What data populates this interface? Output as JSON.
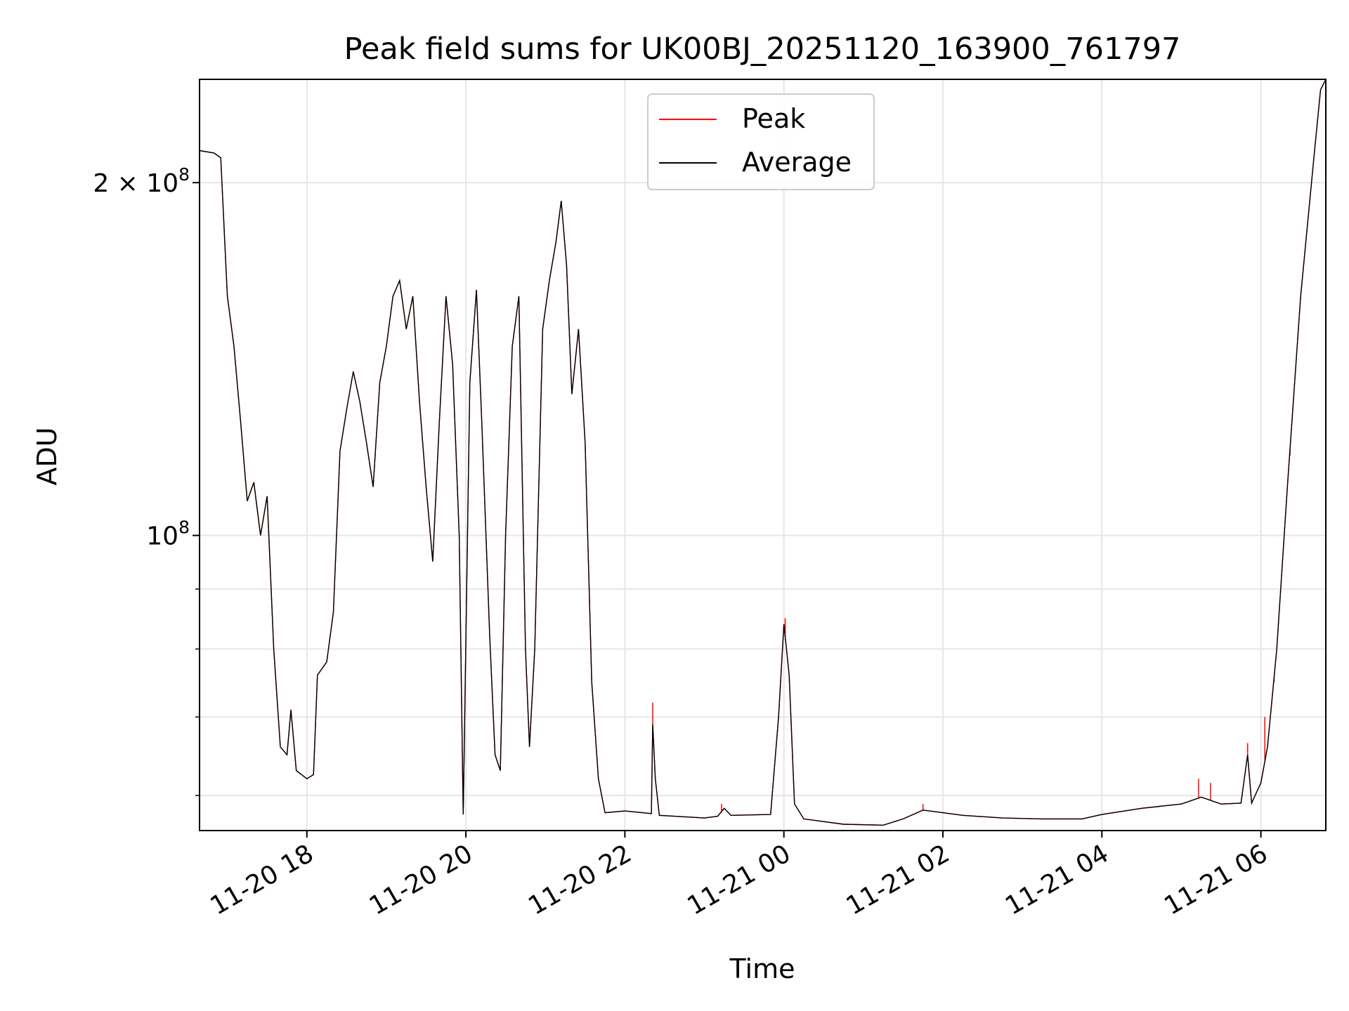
{
  "chart_data": {
    "type": "line",
    "title": "Peak field sums for UK00BJ_20251120_163900_761797",
    "xlabel": "Time",
    "ylabel": "ADU",
    "y_scale": "log",
    "grid": true,
    "legend_position": "top-center",
    "xlim": [
      "2025-11-20 16:39",
      "2025-11-21 06:49"
    ],
    "ylim": [
      56000000,
      245000000
    ],
    "x_ticks": [
      {
        "value": "2025-11-20 18:00",
        "label": "11-20 18"
      },
      {
        "value": "2025-11-20 20:00",
        "label": "11-20 20"
      },
      {
        "value": "2025-11-20 22:00",
        "label": "11-20 22"
      },
      {
        "value": "2025-11-21 00:00",
        "label": "11-21 00"
      },
      {
        "value": "2025-11-21 02:00",
        "label": "11-21 02"
      },
      {
        "value": "2025-11-21 04:00",
        "label": "11-21 04"
      },
      {
        "value": "2025-11-21 06:00",
        "label": "11-21 06"
      }
    ],
    "y_ticks_major": [
      {
        "value": 100000000,
        "base": "10",
        "exp": "8",
        "label_prefix": ""
      },
      {
        "value": 200000000,
        "base": "10",
        "exp": "8",
        "label_prefix": "2 × "
      }
    ],
    "y_ticks_minor": [
      60000000,
      70000000,
      80000000,
      90000000
    ],
    "series": [
      {
        "name": "Average",
        "color": "#000000",
        "points": [
          [
            "2025-11-20 16:39",
            213000000
          ],
          [
            "2025-11-20 16:50",
            212000000
          ],
          [
            "2025-11-20 16:55",
            210000000
          ],
          [
            "2025-11-20 17:00",
            160000000
          ],
          [
            "2025-11-20 17:05",
            145000000
          ],
          [
            "2025-11-20 17:10",
            125000000
          ],
          [
            "2025-11-20 17:15",
            107000000
          ],
          [
            "2025-11-20 17:20",
            111000000
          ],
          [
            "2025-11-20 17:25",
            100000000
          ],
          [
            "2025-11-20 17:30",
            108000000
          ],
          [
            "2025-11-20 17:35",
            80000000
          ],
          [
            "2025-11-20 17:40",
            66000000
          ],
          [
            "2025-11-20 17:45",
            65000000
          ],
          [
            "2025-11-20 17:48",
            71000000
          ],
          [
            "2025-11-20 17:52",
            63000000
          ],
          [
            "2025-11-20 18:00",
            62000000
          ],
          [
            "2025-11-20 18:05",
            62500000
          ],
          [
            "2025-11-20 18:08",
            76000000
          ],
          [
            "2025-11-20 18:15",
            78000000
          ],
          [
            "2025-11-20 18:20",
            86000000
          ],
          [
            "2025-11-20 18:25",
            118000000
          ],
          [
            "2025-11-20 18:30",
            128000000
          ],
          [
            "2025-11-20 18:35",
            138000000
          ],
          [
            "2025-11-20 18:40",
            130000000
          ],
          [
            "2025-11-20 18:45",
            120000000
          ],
          [
            "2025-11-20 18:50",
            110000000
          ],
          [
            "2025-11-20 18:55",
            135000000
          ],
          [
            "2025-11-20 19:00",
            145000000
          ],
          [
            "2025-11-20 19:05",
            160000000
          ],
          [
            "2025-11-20 19:10",
            165000000
          ],
          [
            "2025-11-20 19:15",
            150000000
          ],
          [
            "2025-11-20 19:20",
            160000000
          ],
          [
            "2025-11-20 19:25",
            130000000
          ],
          [
            "2025-11-20 19:30",
            110000000
          ],
          [
            "2025-11-20 19:35",
            95000000
          ],
          [
            "2025-11-20 19:40",
            125000000
          ],
          [
            "2025-11-20 19:45",
            160000000
          ],
          [
            "2025-11-20 19:50",
            140000000
          ],
          [
            "2025-11-20 19:55",
            100000000
          ],
          [
            "2025-11-20 19:58",
            57800000
          ],
          [
            "2025-11-20 20:03",
            135000000
          ],
          [
            "2025-11-20 20:08",
            162000000
          ],
          [
            "2025-11-20 20:12",
            125000000
          ],
          [
            "2025-11-20 20:18",
            82000000
          ],
          [
            "2025-11-20 20:22",
            65000000
          ],
          [
            "2025-11-20 20:26",
            63000000
          ],
          [
            "2025-11-20 20:30",
            100000000
          ],
          [
            "2025-11-20 20:35",
            145000000
          ],
          [
            "2025-11-20 20:40",
            160000000
          ],
          [
            "2025-11-20 20:45",
            80000000
          ],
          [
            "2025-11-20 20:48",
            66000000
          ],
          [
            "2025-11-20 20:52",
            80000000
          ],
          [
            "2025-11-20 20:58",
            150000000
          ],
          [
            "2025-11-20 21:03",
            165000000
          ],
          [
            "2025-11-20 21:08",
            178000000
          ],
          [
            "2025-11-20 21:12",
            193000000
          ],
          [
            "2025-11-20 21:16",
            170000000
          ],
          [
            "2025-11-20 21:20",
            132000000
          ],
          [
            "2025-11-20 21:25",
            150000000
          ],
          [
            "2025-11-20 21:30",
            120000000
          ],
          [
            "2025-11-20 21:35",
            75000000
          ],
          [
            "2025-11-20 21:40",
            62000000
          ],
          [
            "2025-11-20 21:45",
            58000000
          ],
          [
            "2025-11-20 22:00",
            58200000
          ],
          [
            "2025-11-20 22:20",
            57900000
          ],
          [
            "2025-11-20 22:21",
            69000000
          ],
          [
            "2025-11-20 22:23",
            62000000
          ],
          [
            "2025-11-20 22:26",
            57700000
          ],
          [
            "2025-11-20 23:00",
            57400000
          ],
          [
            "2025-11-20 23:10",
            57600000
          ],
          [
            "2025-11-20 23:15",
            58500000
          ],
          [
            "2025-11-20 23:20",
            57700000
          ],
          [
            "2025-11-20 23:50",
            57800000
          ],
          [
            "2025-11-20 23:56",
            70000000
          ],
          [
            "2025-11-21 00:00",
            84000000
          ],
          [
            "2025-11-21 00:04",
            76000000
          ],
          [
            "2025-11-21 00:08",
            59000000
          ],
          [
            "2025-11-21 00:15",
            57300000
          ],
          [
            "2025-11-21 00:45",
            56700000
          ],
          [
            "2025-11-21 01:15",
            56600000
          ],
          [
            "2025-11-21 01:30",
            57300000
          ],
          [
            "2025-11-21 01:45",
            58300000
          ],
          [
            "2025-11-21 02:15",
            57700000
          ],
          [
            "2025-11-21 02:45",
            57400000
          ],
          [
            "2025-11-21 03:15",
            57300000
          ],
          [
            "2025-11-21 03:45",
            57300000
          ],
          [
            "2025-11-21 04:00",
            57800000
          ],
          [
            "2025-11-21 04:30",
            58500000
          ],
          [
            "2025-11-21 05:00",
            59000000
          ],
          [
            "2025-11-21 05:15",
            59800000
          ],
          [
            "2025-11-21 05:30",
            59000000
          ],
          [
            "2025-11-21 05:45",
            59100000
          ],
          [
            "2025-11-21 05:50",
            65000000
          ],
          [
            "2025-11-21 05:53",
            59100000
          ],
          [
            "2025-11-21 06:00",
            61500000
          ],
          [
            "2025-11-21 06:05",
            66000000
          ],
          [
            "2025-11-21 06:12",
            80000000
          ],
          [
            "2025-11-21 06:20",
            110000000
          ],
          [
            "2025-11-21 06:30",
            160000000
          ],
          [
            "2025-11-21 06:40",
            210000000
          ],
          [
            "2025-11-21 06:45",
            240000000
          ],
          [
            "2025-11-21 06:49",
            245000000
          ]
        ]
      },
      {
        "name": "Peak",
        "color": "#ff0000",
        "spikes": [
          [
            "2025-11-20 22:21",
            72000000
          ],
          [
            "2025-11-20 23:13",
            59000000
          ],
          [
            "2025-11-21 00:01",
            85000000
          ],
          [
            "2025-11-21 01:45",
            59000000
          ],
          [
            "2025-11-21 05:13",
            62000000
          ],
          [
            "2025-11-21 05:22",
            61500000
          ],
          [
            "2025-11-21 05:50",
            66500000
          ],
          [
            "2025-11-21 06:03",
            70000000
          ],
          [
            "2025-11-21 06:10",
            75000000
          ],
          [
            "2025-11-21 06:22",
            117000000
          ]
        ]
      }
    ]
  }
}
